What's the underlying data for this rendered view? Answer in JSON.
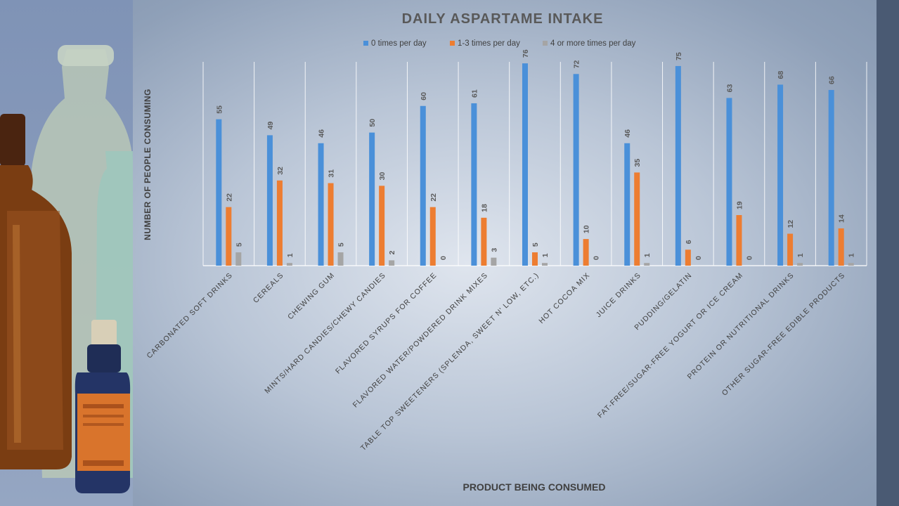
{
  "chart_data": {
    "type": "bar",
    "title": "DAILY ASPARTAME INTAKE",
    "xlabel": "PRODUCT BEING CONSUMED",
    "ylabel": "NUMBER OF PEOPLE CONSUMING",
    "categories": [
      "CARBONATED SOFT DRINKS",
      "CEREALS",
      "CHEWING GUM",
      "MINTS/HARD CANDIES/CHEWY CANDIES",
      "FLAVORED SYRUPS FOR COFFEE",
      "FLAVORED WATER/POWDERED DRINK MIXES",
      "TABLE TOP SWEETENERS (SPLENDA, SWEET N' LOW, ETC.)",
      "HOT COCOA MIX",
      "JUICE DRINKS",
      "PUDDING/GELATIN",
      "FAT-FREE/SUGAR-FREE YOGURT OR ICE CREAM",
      "PROTEIN OR NUTRITIONAL DRINKS",
      "OTHER SUGAR-FREE EDIBLE PRODUCTS"
    ],
    "series": [
      {
        "name": "0 times per day",
        "color": "#4a90d9",
        "values": [
          55,
          49,
          46,
          50,
          60,
          61,
          76,
          72,
          46,
          75,
          63,
          68,
          66
        ]
      },
      {
        "name": "1-3 times per day",
        "color": "#ed7d31",
        "values": [
          22,
          32,
          31,
          30,
          22,
          18,
          5,
          10,
          35,
          6,
          19,
          12,
          14
        ]
      },
      {
        "name": "4 or more times per day",
        "color": "#a5a5a5",
        "values": [
          5,
          1,
          5,
          2,
          0,
          3,
          1,
          0,
          1,
          0,
          0,
          1,
          1
        ]
      }
    ],
    "ylim": [
      0,
      80
    ],
    "grid": "vertical category separators",
    "legend": "top-center",
    "data_labels": true
  }
}
